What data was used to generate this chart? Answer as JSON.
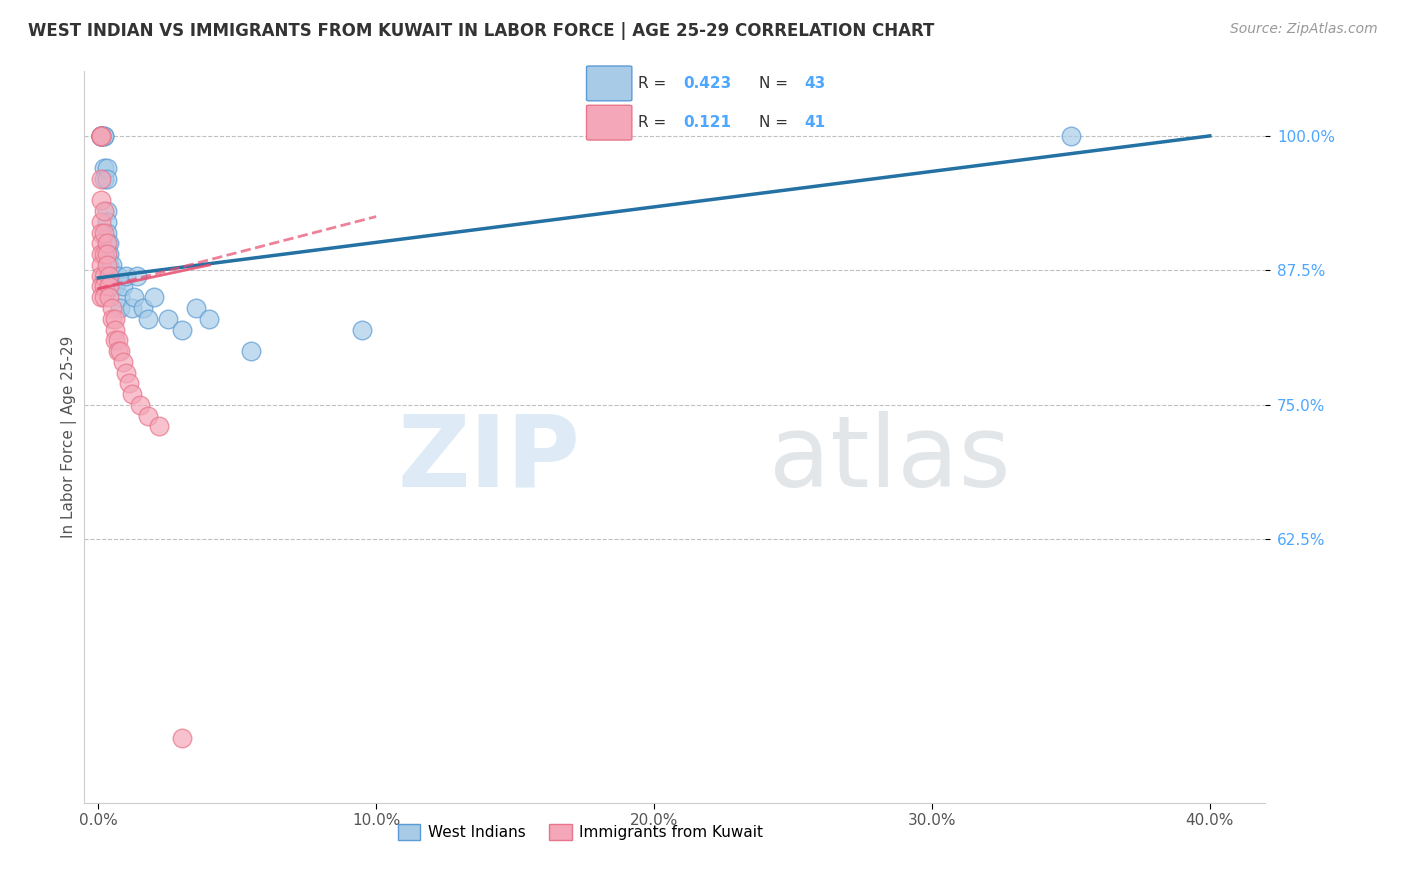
{
  "title": "WEST INDIAN VS IMMIGRANTS FROM KUWAIT IN LABOR FORCE | AGE 25-29 CORRELATION CHART",
  "source": "Source: ZipAtlas.com",
  "ylabel": "In Labor Force | Age 25-29",
  "x_tick_labels": [
    "0.0%",
    "10.0%",
    "20.0%",
    "30.0%",
    "40.0%"
  ],
  "x_tick_positions": [
    0.0,
    0.1,
    0.2,
    0.3,
    0.4
  ],
  "y_tick_labels": [
    "100.0%",
    "87.5%",
    "75.0%",
    "62.5%"
  ],
  "y_tick_positions": [
    1.0,
    0.875,
    0.75,
    0.625
  ],
  "xlim": [
    -0.005,
    0.42
  ],
  "ylim": [
    0.38,
    1.06
  ],
  "blue_R": 0.423,
  "blue_N": 43,
  "pink_R": 0.121,
  "pink_N": 41,
  "blue_color": "#a8cce8",
  "pink_color": "#f4a7b9",
  "blue_edge_color": "#5b9bd5",
  "pink_edge_color": "#e8758a",
  "blue_line_color": "#2471a3",
  "pink_line_color": "#e74c6f",
  "pink_dash_color": "#f0a0b5",
  "background_color": "#ffffff",
  "grid_color": "#c0c0c0",
  "legend_label_blue": "West Indians",
  "legend_label_pink": "Immigrants from Kuwait",
  "west_indian_x": [
    0.001,
    0.001,
    0.001,
    0.001,
    0.001,
    0.001,
    0.002,
    0.002,
    0.002,
    0.002,
    0.003,
    0.003,
    0.003,
    0.003,
    0.003,
    0.003,
    0.003,
    0.004,
    0.004,
    0.004,
    0.005,
    0.005,
    0.005,
    0.006,
    0.006,
    0.007,
    0.008,
    0.008,
    0.009,
    0.01,
    0.012,
    0.013,
    0.014,
    0.016,
    0.018,
    0.02,
    0.025,
    0.03,
    0.035,
    0.04,
    0.055,
    0.095,
    0.35
  ],
  "west_indian_y": [
    1.0,
    1.0,
    1.0,
    1.0,
    1.0,
    1.0,
    1.0,
    1.0,
    0.97,
    0.96,
    0.97,
    0.96,
    0.93,
    0.92,
    0.91,
    0.9,
    0.89,
    0.9,
    0.89,
    0.88,
    0.88,
    0.87,
    0.86,
    0.87,
    0.86,
    0.87,
    0.85,
    0.84,
    0.86,
    0.87,
    0.84,
    0.85,
    0.87,
    0.84,
    0.83,
    0.85,
    0.83,
    0.82,
    0.84,
    0.83,
    0.8,
    0.82,
    1.0
  ],
  "kuwait_x": [
    0.001,
    0.001,
    0.001,
    0.001,
    0.001,
    0.001,
    0.001,
    0.001,
    0.001,
    0.001,
    0.001,
    0.001,
    0.001,
    0.002,
    0.002,
    0.002,
    0.002,
    0.002,
    0.002,
    0.003,
    0.003,
    0.003,
    0.004,
    0.004,
    0.004,
    0.005,
    0.005,
    0.006,
    0.006,
    0.006,
    0.007,
    0.007,
    0.008,
    0.009,
    0.01,
    0.011,
    0.012,
    0.015,
    0.018,
    0.022,
    0.03
  ],
  "kuwait_y": [
    1.0,
    1.0,
    1.0,
    0.96,
    0.94,
    0.92,
    0.91,
    0.9,
    0.89,
    0.88,
    0.87,
    0.86,
    0.85,
    0.93,
    0.91,
    0.89,
    0.87,
    0.86,
    0.85,
    0.9,
    0.89,
    0.88,
    0.87,
    0.86,
    0.85,
    0.84,
    0.83,
    0.83,
    0.82,
    0.81,
    0.81,
    0.8,
    0.8,
    0.79,
    0.78,
    0.77,
    0.76,
    0.75,
    0.74,
    0.73,
    0.44
  ],
  "blue_trendline_x0": 0.0,
  "blue_trendline_y0": 0.868,
  "blue_trendline_x1": 0.4,
  "blue_trendline_y1": 1.0,
  "pink_trendline_x0": 0.0,
  "pink_trendline_y0": 0.858,
  "pink_trendline_x1": 0.1,
  "pink_trendline_y1": 0.925
}
